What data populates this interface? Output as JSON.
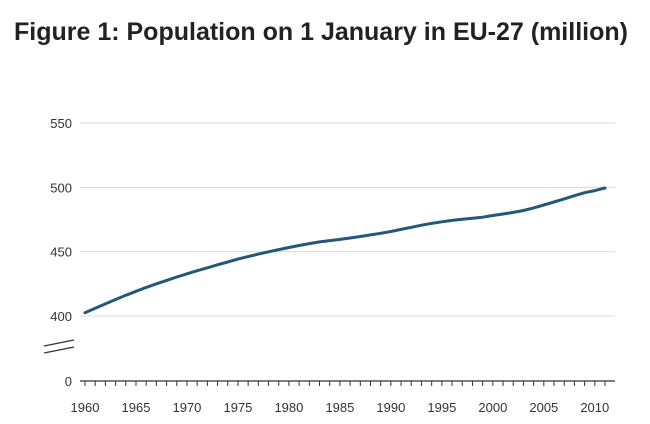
{
  "chart_data": {
    "type": "line",
    "title": "Figure 1: Population on 1 January in EU-27 (million)",
    "xlabel": "",
    "ylabel": "",
    "xlim": [
      1960,
      2011
    ],
    "ylim": [
      0,
      550
    ],
    "y_axis_break": true,
    "grid": true,
    "legend": "none",
    "line_color": "#24587a",
    "grid_color": "#d9d9d9",
    "x_ticks": [
      1960,
      1965,
      1970,
      1975,
      1980,
      1985,
      1990,
      1995,
      2000,
      2005,
      2010
    ],
    "x_tick_labels": [
      "1960",
      "1965",
      "1970",
      "1975",
      "1980",
      "1985",
      "1990",
      "1995",
      "2000",
      "2005",
      "2010"
    ],
    "y_ticks": [
      0,
      400,
      450,
      500,
      550
    ],
    "y_tick_labels": [
      "0",
      "400",
      "450",
      "500",
      "550"
    ],
    "series": [
      {
        "x": [
          1960,
          1961,
          1962,
          1963,
          1964,
          1965,
          1966,
          1967,
          1968,
          1969,
          1970,
          1971,
          1972,
          1973,
          1974,
          1975,
          1976,
          1977,
          1978,
          1979,
          1980,
          1981,
          1982,
          1983,
          1984,
          1985,
          1986,
          1987,
          1988,
          1989,
          1990,
          1991,
          1992,
          1993,
          1994,
          1995,
          1996,
          1997,
          1998,
          1999,
          2000,
          2001,
          2002,
          2003,
          2004,
          2005,
          2006,
          2007,
          2008,
          2009,
          2010,
          2011
        ],
        "y": [
          402.6,
          406.0,
          409.4,
          412.8,
          416.1,
          419.2,
          422.2,
          425.0,
          427.7,
          430.3,
          432.8,
          435.2,
          437.5,
          439.8,
          442.0,
          444.2,
          446.2,
          448.1,
          449.9,
          451.6,
          453.2,
          454.8,
          456.3,
          457.6,
          458.6,
          459.5,
          460.6,
          461.8,
          463.0,
          464.3,
          465.7,
          467.3,
          468.9,
          470.6,
          472.0,
          473.2,
          474.3,
          475.2,
          475.9,
          476.8,
          478.1,
          479.3,
          480.5,
          482.0,
          484.0,
          486.3,
          488.6,
          491.0,
          493.5,
          495.8,
          497.5,
          499.5
        ]
      }
    ]
  }
}
